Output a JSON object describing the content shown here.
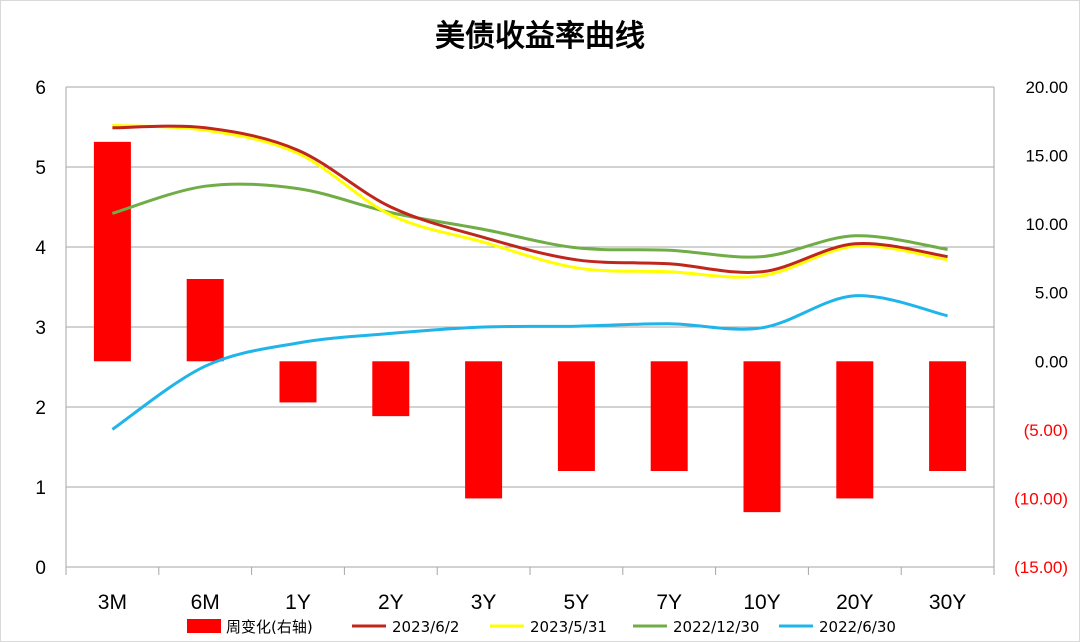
{
  "chart_data": {
    "type": "bar+line",
    "title": "美债收益率曲线",
    "categories": [
      "3M",
      "6M",
      "1Y",
      "2Y",
      "3Y",
      "5Y",
      "7Y",
      "10Y",
      "20Y",
      "30Y"
    ],
    "left_axis": {
      "ylim": [
        0,
        6
      ],
      "ticks": [
        "0",
        "1",
        "2",
        "3",
        "4",
        "5",
        "6"
      ]
    },
    "right_axis": {
      "ylim": [
        -15,
        20
      ],
      "ticks": [
        "(15.00)",
        "(10.00)",
        "(5.00)",
        "0.00",
        "5.00",
        "10.00",
        "15.00",
        "20.00"
      ],
      "ticks_values": [
        -15,
        -10,
        -5,
        0,
        5,
        10,
        15,
        20
      ],
      "negative_color": "#ff0000"
    },
    "bars": {
      "name": "周变化(右轴)",
      "axis": "right",
      "color": "#ff0000",
      "values": [
        16,
        6,
        -3,
        -4,
        -10,
        -8,
        -8,
        -11,
        -10,
        -8
      ]
    },
    "series": [
      {
        "name": "2023/6/2",
        "axis": "left",
        "color": "#c0271c",
        "values": [
          5.49,
          5.49,
          5.21,
          4.5,
          4.12,
          3.84,
          3.79,
          3.69,
          4.04,
          3.88
        ]
      },
      {
        "name": "2023/5/31",
        "axis": "left",
        "color": "#ffff00",
        "values": [
          5.52,
          5.46,
          5.17,
          4.4,
          4.06,
          3.74,
          3.69,
          3.64,
          4.01,
          3.84
        ]
      },
      {
        "name": "2022/12/30",
        "axis": "left",
        "color": "#70ad47",
        "values": [
          4.42,
          4.76,
          4.73,
          4.43,
          4.22,
          3.99,
          3.96,
          3.88,
          4.14,
          3.97
        ]
      },
      {
        "name": "2022/6/30",
        "axis": "left",
        "color": "#1fb4ea",
        "values": [
          1.72,
          2.51,
          2.8,
          2.92,
          3.0,
          3.01,
          3.04,
          2.99,
          3.39,
          3.14
        ]
      }
    ],
    "grid": true,
    "legend_position": "bottom"
  }
}
